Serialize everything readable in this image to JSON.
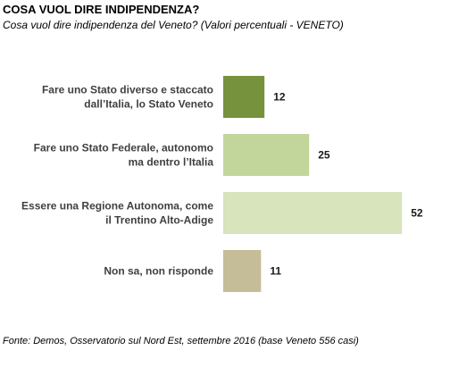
{
  "header": {
    "title": "COSA VUOL DIRE INDIPENDENZA?",
    "subtitle": "Cosa vuol dire indipendenza del Veneto? (Valori percentuali - VENETO)"
  },
  "footer": {
    "source": "Fonte: Demos, Osservatorio sul Nord Est, settembre  2016 (base Veneto 556 casi)"
  },
  "chart_data": {
    "type": "bar",
    "orientation": "horizontal",
    "categories": [
      [
        "Fare uno Stato diverso e staccato",
        "dall’Italia, lo Stato Veneto"
      ],
      [
        "Fare uno Stato Federale, autonomo",
        "ma dentro l’Italia"
      ],
      [
        "Essere una Regione Autonoma, come",
        "il Trentino Alto-Adige"
      ],
      [
        "Non sa, non risponde"
      ]
    ],
    "values": [
      12,
      25,
      52,
      11
    ],
    "colors": [
      "#76923c",
      "#c2d69b",
      "#d7e4bc",
      "#c4bd97"
    ],
    "grid": false,
    "legend": "none"
  }
}
